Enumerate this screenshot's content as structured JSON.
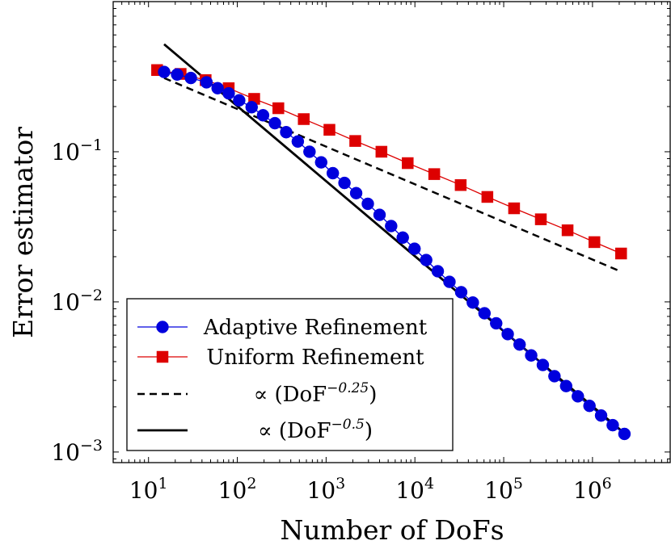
{
  "chart_data": {
    "type": "line",
    "x_scale": "log",
    "y_scale": "log",
    "xlabel": "Number of DoFs",
    "ylabel": "Error estimator",
    "xlim": [
      4,
      7500000
    ],
    "ylim": [
      0.00085,
      1.0
    ],
    "x_ticks": [
      {
        "value": 10,
        "base": "10",
        "exp": "1"
      },
      {
        "value": 100,
        "base": "10",
        "exp": "2"
      },
      {
        "value": 1000,
        "base": "10",
        "exp": "3"
      },
      {
        "value": 10000,
        "base": "10",
        "exp": "4"
      },
      {
        "value": 100000,
        "base": "10",
        "exp": "5"
      },
      {
        "value": 1000000,
        "base": "10",
        "exp": "6"
      }
    ],
    "y_ticks": [
      {
        "value": 0.001,
        "base": "10",
        "exp": "−3"
      },
      {
        "value": 0.01,
        "base": "10",
        "exp": "−2"
      },
      {
        "value": 0.1,
        "base": "10",
        "exp": "−1"
      }
    ],
    "grid": false,
    "legend_position": "bottom-left",
    "series": [
      {
        "name": "Adaptive Refinement",
        "color": "#0000dd",
        "marker": "circle",
        "line": "solid",
        "x": [
          15,
          21,
          30,
          45,
          60,
          80,
          105,
          145,
          195,
          265,
          355,
          480,
          650,
          880,
          1190,
          1610,
          2180,
          2950,
          4000,
          5400,
          7300,
          9900,
          13400,
          18100,
          24500,
          33200,
          44900,
          60800,
          82300,
          111000,
          151000,
          204000,
          276000,
          373000,
          505000,
          684000,
          925000,
          1250000,
          1690000,
          2290000
        ],
        "y": [
          0.34,
          0.327,
          0.31,
          0.29,
          0.265,
          0.245,
          0.22,
          0.198,
          0.175,
          0.155,
          0.135,
          0.117,
          0.1,
          0.085,
          0.072,
          0.062,
          0.053,
          0.045,
          0.038,
          0.032,
          0.0268,
          0.0226,
          0.019,
          0.016,
          0.0136,
          0.0116,
          0.0099,
          0.0084,
          0.0072,
          0.0061,
          0.0052,
          0.0044,
          0.0038,
          0.0032,
          0.00275,
          0.00235,
          0.00203,
          0.00175,
          0.00151,
          0.00132
        ]
      },
      {
        "name": "Uniform Refinement",
        "color": "#dd0000",
        "marker": "square",
        "line": "solid",
        "x": [
          12.5,
          23,
          44,
          80,
          155,
          290,
          560,
          1090,
          2130,
          4200,
          8300,
          16500,
          32800,
          65500,
          131000,
          262000,
          524000,
          1050000,
          2100000
        ],
        "y": [
          0.35,
          0.33,
          0.3,
          0.265,
          0.225,
          0.195,
          0.165,
          0.14,
          0.118,
          0.1,
          0.084,
          0.071,
          0.06,
          0.05,
          0.042,
          0.0355,
          0.03,
          0.025,
          0.021
        ]
      },
      {
        "name": "∝ (DoF−0.25)",
        "color": "#000000",
        "marker": "none",
        "line": "dashed",
        "x": [
          15,
          2100000
        ],
        "y": [
          0.31,
          0.0159
        ]
      },
      {
        "name": "∝ (DoF−0.5)",
        "color": "#000000",
        "marker": "none",
        "line": "solid-thick",
        "x": [
          15,
          2300000
        ],
        "y": [
          0.52,
          0.00133
        ]
      }
    ],
    "legend": [
      {
        "label": "Adaptive Refinement",
        "prefix": "",
        "base": "",
        "exp": "",
        "suffix": ""
      },
      {
        "label": "Uniform Refinement",
        "prefix": "",
        "base": "",
        "exp": "",
        "suffix": ""
      },
      {
        "label": "",
        "prefix": "∝ (",
        "base": "DoF",
        "exp": "−0.25",
        "suffix": ")"
      },
      {
        "label": "",
        "prefix": "∝ (",
        "base": "DoF",
        "exp": "−0.5",
        "suffix": ")"
      }
    ]
  }
}
